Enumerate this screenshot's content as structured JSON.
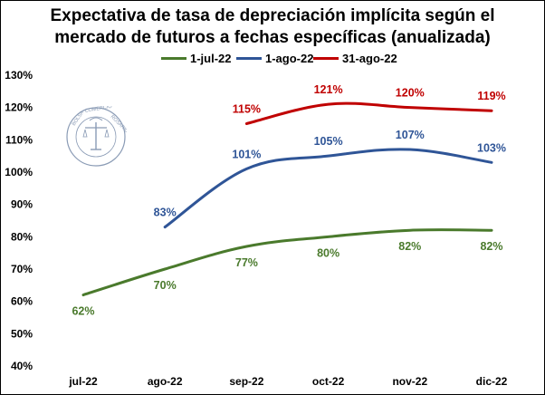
{
  "title_line1": "Expectativa de tasa de depreciación implícita según el",
  "title_line2": "mercado de futuros a fechas específicas (anualizada)",
  "chart_data": {
    "type": "line",
    "title": "Expectativa de tasa de depreciación implícita según el mercado de futuros a fechas específicas (anualizada)",
    "categories": [
      "jul-22",
      "ago-22",
      "sep-22",
      "oct-22",
      "nov-22",
      "dic-22"
    ],
    "y_ticks": [
      "40%",
      "50%",
      "60%",
      "70%",
      "80%",
      "90%",
      "100%",
      "110%",
      "120%",
      "130%"
    ],
    "ylim": [
      40,
      130
    ],
    "grid": false,
    "legend_position": "top",
    "series": [
      {
        "name": "1-jul-22",
        "color": "#4a7a2c",
        "values": [
          62,
          70,
          77,
          80,
          82,
          82
        ],
        "labels": [
          "62%",
          "70%",
          "77%",
          "80%",
          "82%",
          "82%"
        ],
        "label_pos": "below"
      },
      {
        "name": "1-ago-22",
        "color": "#2f5597",
        "values": [
          null,
          83,
          101,
          105,
          107,
          103
        ],
        "labels": [
          null,
          "83%",
          "101%",
          "105%",
          "107%",
          "103%"
        ],
        "label_pos": "above"
      },
      {
        "name": "31-ago-22",
        "color": "#c00000",
        "values": [
          null,
          null,
          115,
          121,
          120,
          119
        ],
        "labels": [
          null,
          null,
          "115%",
          "121%",
          "120%",
          "119%"
        ],
        "label_pos": "above"
      }
    ]
  },
  "watermark": {
    "text": "BOLSA DE COMERCIO DE ROSARIO"
  }
}
